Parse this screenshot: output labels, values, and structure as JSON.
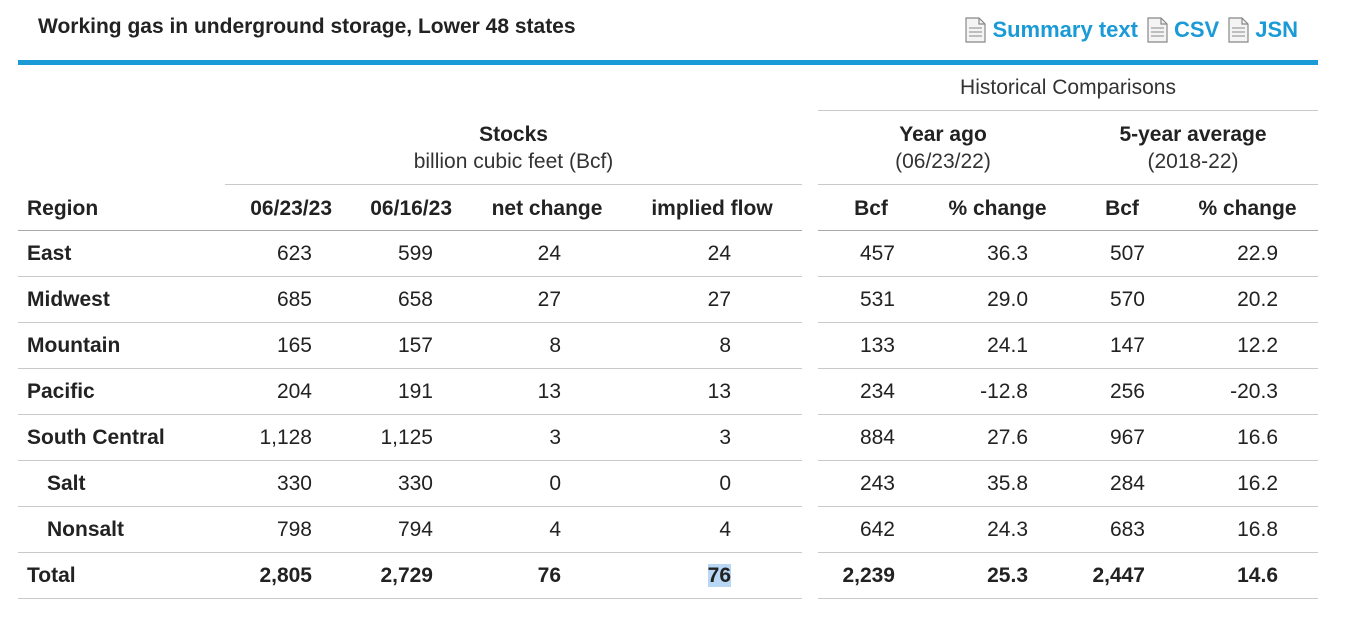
{
  "title": "Working gas in underground storage, Lower 48 states",
  "links": [
    {
      "label": "Summary text",
      "icon": "document-icon"
    },
    {
      "label": "CSV",
      "icon": "document-icon"
    },
    {
      "label": "JSN",
      "icon": "document-icon"
    }
  ],
  "headers": {
    "historical": "Historical Comparisons",
    "stocks_title": "Stocks",
    "stocks_unit": "billion cubic feet (Bcf)",
    "year_ago_title": "Year ago",
    "year_ago_date": "(06/23/22)",
    "avg_title": "5-year average",
    "avg_range": "(2018-22)",
    "columns": [
      "Region",
      "06/23/23",
      "06/16/23",
      "net change",
      "implied flow",
      "Bcf",
      "% change",
      "Bcf",
      "% change"
    ]
  },
  "rows": [
    {
      "region": "East",
      "cur": "623",
      "prev": "599",
      "net": "24",
      "flow": "24",
      "ya_bcf": "457",
      "ya_pct": "36.3",
      "avg_bcf": "507",
      "avg_pct": "22.9"
    },
    {
      "region": "Midwest",
      "cur": "685",
      "prev": "658",
      "net": "27",
      "flow": "27",
      "ya_bcf": "531",
      "ya_pct": "29.0",
      "avg_bcf": "570",
      "avg_pct": "20.2"
    },
    {
      "region": "Mountain",
      "cur": "165",
      "prev": "157",
      "net": "8",
      "flow": "8",
      "ya_bcf": "133",
      "ya_pct": "24.1",
      "avg_bcf": "147",
      "avg_pct": "12.2"
    },
    {
      "region": "Pacific",
      "cur": "204",
      "prev": "191",
      "net": "13",
      "flow": "13",
      "ya_bcf": "234",
      "ya_pct": "-12.8",
      "avg_bcf": "256",
      "avg_pct": "-20.3"
    },
    {
      "region": "South Central",
      "cur": "1,128",
      "prev": "1,125",
      "net": "3",
      "flow": "3",
      "ya_bcf": "884",
      "ya_pct": "27.6",
      "avg_bcf": "967",
      "avg_pct": "16.6"
    },
    {
      "region": "Salt",
      "cur": "330",
      "prev": "330",
      "net": "0",
      "flow": "0",
      "ya_bcf": "243",
      "ya_pct": "35.8",
      "avg_bcf": "284",
      "avg_pct": "16.2"
    },
    {
      "region": "Nonsalt",
      "cur": "798",
      "prev": "794",
      "net": "4",
      "flow": "4",
      "ya_bcf": "642",
      "ya_pct": "24.3",
      "avg_bcf": "683",
      "avg_pct": "16.8"
    },
    {
      "region": "Total",
      "cur": "2,805",
      "prev": "2,729",
      "net": "76",
      "flow": "76",
      "ya_bcf": "2,239",
      "ya_pct": "25.3",
      "avg_bcf": "2,447",
      "avg_pct": "14.6"
    }
  ],
  "colors": {
    "accent": "#1a9ad6",
    "highlight": "#b7d7f5"
  }
}
